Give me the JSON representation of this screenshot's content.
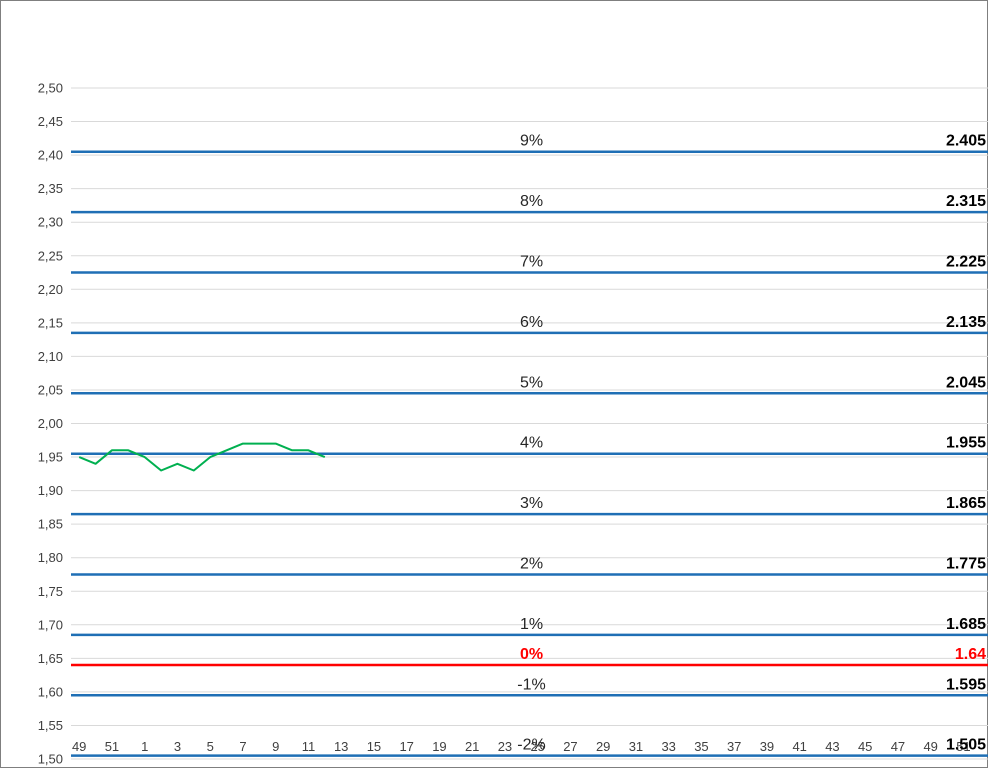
{
  "chart_data": {
    "type": "line",
    "title": "",
    "xlabel": "",
    "ylabel": "",
    "ylim": [
      1.5,
      2.5
    ],
    "y_ticks": [
      "1,50",
      "1,55",
      "1,60",
      "1,65",
      "1,70",
      "1,75",
      "1,80",
      "1,85",
      "1,90",
      "1,95",
      "2,00",
      "2,05",
      "2,10",
      "2,15",
      "2,20",
      "2,25",
      "2,30",
      "2,35",
      "2,40",
      "2,45",
      "2,50"
    ],
    "x_categories": [
      "49",
      "50",
      "51",
      "52",
      "1",
      "2",
      "3",
      "4",
      "5",
      "6",
      "7",
      "8",
      "9",
      "10",
      "11",
      "12",
      "13",
      "14",
      "15",
      "16",
      "17",
      "18",
      "19",
      "20",
      "21",
      "22",
      "23",
      "24",
      "25",
      "26",
      "27",
      "28",
      "29",
      "30",
      "31",
      "32",
      "33",
      "34",
      "35",
      "36",
      "37",
      "38",
      "39",
      "40",
      "41",
      "42",
      "43",
      "44",
      "45",
      "46",
      "47",
      "48",
      "49",
      "50",
      "51",
      "52"
    ],
    "x_tick_labels": [
      "49",
      "",
      "51",
      "",
      "1",
      "",
      "3",
      "",
      "5",
      "",
      "7",
      "",
      "9",
      "",
      "11",
      "",
      "13",
      "",
      "15",
      "",
      "17",
      "",
      "19",
      "",
      "21",
      "",
      "23",
      "",
      "25",
      "",
      "27",
      "",
      "29",
      "",
      "31",
      "",
      "33",
      "",
      "35",
      "",
      "37",
      "",
      "39",
      "",
      "41",
      "",
      "43",
      "",
      "45",
      "",
      "47",
      "",
      "49",
      "",
      "51",
      ""
    ],
    "grid": true,
    "series": [
      {
        "color": "#00b050",
        "x": [
          "49",
          "50",
          "51",
          "52",
          "1",
          "2",
          "3",
          "4",
          "5",
          "6",
          "7",
          "8",
          "9",
          "10",
          "11",
          "12"
        ],
        "values": [
          1.95,
          1.94,
          1.96,
          1.96,
          1.95,
          1.93,
          1.94,
          1.93,
          1.95,
          1.96,
          1.97,
          1.97,
          1.97,
          1.96,
          1.96,
          1.95
        ]
      }
    ],
    "reference_lines": [
      {
        "value": 2.405,
        "pct_label": "9%",
        "value_label": "2.405",
        "color": "#1f6fb5"
      },
      {
        "value": 2.315,
        "pct_label": "8%",
        "value_label": "2.315",
        "color": "#1f6fb5"
      },
      {
        "value": 2.225,
        "pct_label": "7%",
        "value_label": "2.225",
        "color": "#1f6fb5"
      },
      {
        "value": 2.135,
        "pct_label": "6%",
        "value_label": "2.135",
        "color": "#1f6fb5"
      },
      {
        "value": 2.045,
        "pct_label": "5%",
        "value_label": "2.045",
        "color": "#1f6fb5"
      },
      {
        "value": 1.955,
        "pct_label": "4%",
        "value_label": "1.955",
        "color": "#1f6fb5"
      },
      {
        "value": 1.865,
        "pct_label": "3%",
        "value_label": "1.865",
        "color": "#1f6fb5"
      },
      {
        "value": 1.775,
        "pct_label": "2%",
        "value_label": "1.775",
        "color": "#1f6fb5"
      },
      {
        "value": 1.685,
        "pct_label": "1%",
        "value_label": "1.685",
        "color": "#1f6fb5"
      },
      {
        "value": 1.64,
        "pct_label": "0%",
        "value_label": "1.64",
        "color": "#ff0000",
        "highlight": true
      },
      {
        "value": 1.595,
        "pct_label": "-1%",
        "value_label": "1.595",
        "color": "#1f6fb5"
      },
      {
        "value": 1.505,
        "pct_label": "-2%",
        "value_label": "1.505",
        "color": "#1f6fb5"
      }
    ]
  }
}
